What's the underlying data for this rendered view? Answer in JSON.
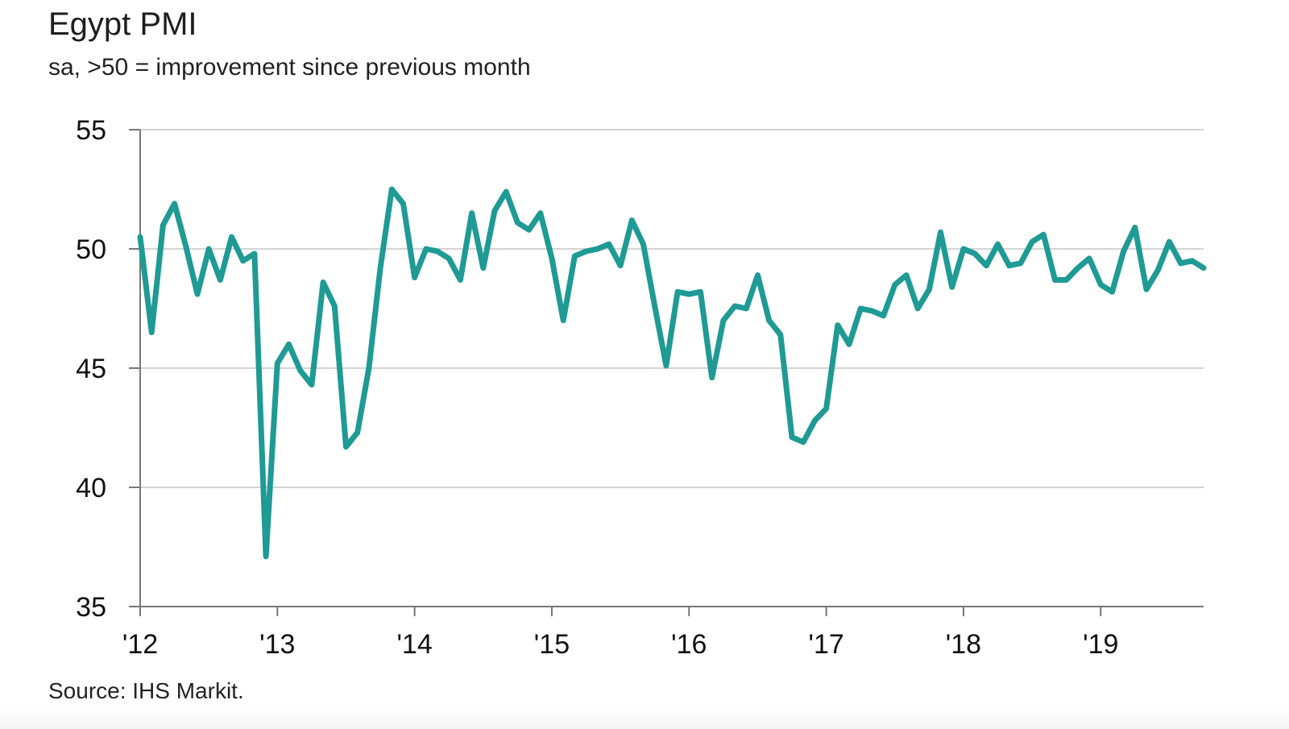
{
  "chart_data": {
    "type": "line",
    "title": "Egypt PMI",
    "subtitle": "sa, >50 = improvement since previous month",
    "source": "Source: IHS Markit.",
    "ylim": [
      35,
      55
    ],
    "yticks": [
      35,
      40,
      45,
      50,
      55
    ],
    "xlim": [
      "2012-01",
      "2019-10"
    ],
    "xticks": [
      {
        "label": "'12",
        "date": "2012-01"
      },
      {
        "label": "'13",
        "date": "2013-01"
      },
      {
        "label": "'14",
        "date": "2014-01"
      },
      {
        "label": "'15",
        "date": "2015-01"
      },
      {
        "label": "'16",
        "date": "2016-01"
      },
      {
        "label": "'17",
        "date": "2017-01"
      },
      {
        "label": "'18",
        "date": "2018-01"
      },
      {
        "label": "'19",
        "date": "2019-01"
      }
    ],
    "grid": true,
    "legend": false,
    "line_color": "#1f9a94",
    "series": [
      {
        "x": [
          "2012-01",
          "2012-02",
          "2012-03",
          "2012-04",
          "2012-05",
          "2012-06",
          "2012-07",
          "2012-08",
          "2012-09",
          "2012-10",
          "2012-11",
          "2012-12",
          "2013-01",
          "2013-02",
          "2013-03",
          "2013-04",
          "2013-05",
          "2013-06",
          "2013-07",
          "2013-08",
          "2013-09",
          "2013-10",
          "2013-11",
          "2013-12",
          "2014-01",
          "2014-02",
          "2014-03",
          "2014-04",
          "2014-05",
          "2014-06",
          "2014-07",
          "2014-08",
          "2014-09",
          "2014-10",
          "2014-11",
          "2014-12",
          "2015-01",
          "2015-02",
          "2015-03",
          "2015-04",
          "2015-05",
          "2015-06",
          "2015-07",
          "2015-08",
          "2015-09",
          "2015-10",
          "2015-11",
          "2015-12",
          "2016-01",
          "2016-02",
          "2016-03",
          "2016-04",
          "2016-05",
          "2016-06",
          "2016-07",
          "2016-08",
          "2016-09",
          "2016-10",
          "2016-11",
          "2016-12",
          "2017-01",
          "2017-02",
          "2017-03",
          "2017-04",
          "2017-05",
          "2017-06",
          "2017-07",
          "2017-08",
          "2017-09",
          "2017-10",
          "2017-11",
          "2017-12",
          "2018-01",
          "2018-02",
          "2018-03",
          "2018-04",
          "2018-05",
          "2018-06",
          "2018-07",
          "2018-08",
          "2018-09",
          "2018-10",
          "2018-11",
          "2018-12",
          "2019-01",
          "2019-02",
          "2019-03",
          "2019-04",
          "2019-05",
          "2019-06",
          "2019-07",
          "2019-08",
          "2019-09",
          "2019-10"
        ],
        "values": [
          50.5,
          46.5,
          51.0,
          51.9,
          50.1,
          48.1,
          50.0,
          48.7,
          50.5,
          49.5,
          49.8,
          37.1,
          45.2,
          46.0,
          44.9,
          44.3,
          48.6,
          47.6,
          41.7,
          42.3,
          45.0,
          49.2,
          52.5,
          51.9,
          48.8,
          50.0,
          49.9,
          49.6,
          48.7,
          51.5,
          49.2,
          51.6,
          52.4,
          51.1,
          50.8,
          51.5,
          49.6,
          47.0,
          49.7,
          49.9,
          50.0,
          50.2,
          49.3,
          51.2,
          50.2,
          47.6,
          45.1,
          48.2,
          48.1,
          48.2,
          44.6,
          47.0,
          47.6,
          47.5,
          48.9,
          47.0,
          46.4,
          42.1,
          41.9,
          42.8,
          43.3,
          46.8,
          46.0,
          47.5,
          47.4,
          47.2,
          48.5,
          48.9,
          47.5,
          48.3,
          50.7,
          48.4,
          50.0,
          49.8,
          49.3,
          50.2,
          49.3,
          49.4,
          50.3,
          50.6,
          48.7,
          48.7,
          49.2,
          49.6,
          48.5,
          48.2,
          49.9,
          50.9,
          48.3,
          49.1,
          50.3,
          49.4,
          49.5,
          49.2
        ]
      }
    ]
  }
}
